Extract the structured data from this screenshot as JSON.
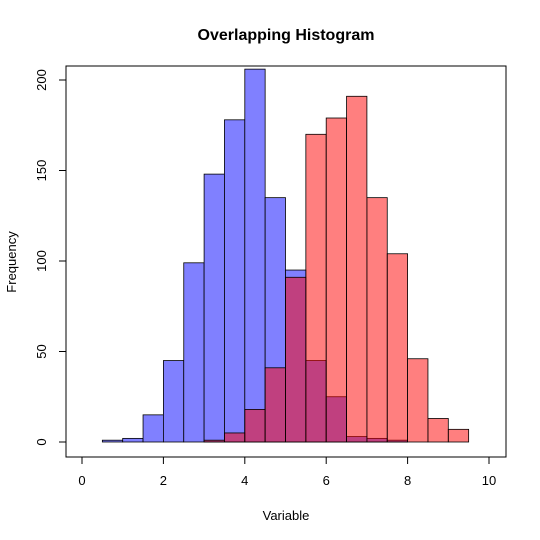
{
  "chart_data": {
    "type": "bar",
    "subtype": "overlapping-histogram",
    "title": "Overlapping Histogram",
    "xlabel": "Variable",
    "ylabel": "Frequency",
    "xlim": [
      0,
      10
    ],
    "ylim": [
      0,
      200
    ],
    "x_ticks": [
      "0",
      "2",
      "4",
      "6",
      "8",
      "10"
    ],
    "y_ticks": [
      "0",
      "50",
      "100",
      "150",
      "200"
    ],
    "bin_width": 0.5,
    "grid": false,
    "legend": "none",
    "series": [
      {
        "color": "#8080ff",
        "opacity": 1,
        "bins": [
          {
            "x0": 0.5,
            "count": 1
          },
          {
            "x0": 1.0,
            "count": 2
          },
          {
            "x0": 1.5,
            "count": 15
          },
          {
            "x0": 2.0,
            "count": 45
          },
          {
            "x0": 2.5,
            "count": 99
          },
          {
            "x0": 3.0,
            "count": 148
          },
          {
            "x0": 3.5,
            "count": 178
          },
          {
            "x0": 4.0,
            "count": 206
          },
          {
            "x0": 4.5,
            "count": 135
          },
          {
            "x0": 5.0,
            "count": 95
          },
          {
            "x0": 5.5,
            "count": 45
          },
          {
            "x0": 6.0,
            "count": 25
          },
          {
            "x0": 6.5,
            "count": 3
          },
          {
            "x0": 7.0,
            "count": 2
          },
          {
            "x0": 7.5,
            "count": 1
          }
        ]
      },
      {
        "color": "#ff0000",
        "opacity": 0.5,
        "bins": [
          {
            "x0": 3.0,
            "count": 1
          },
          {
            "x0": 3.5,
            "count": 5
          },
          {
            "x0": 4.0,
            "count": 18
          },
          {
            "x0": 4.5,
            "count": 41
          },
          {
            "x0": 5.0,
            "count": 91
          },
          {
            "x0": 5.5,
            "count": 170
          },
          {
            "x0": 6.0,
            "count": 179
          },
          {
            "x0": 6.5,
            "count": 191
          },
          {
            "x0": 7.0,
            "count": 135
          },
          {
            "x0": 7.5,
            "count": 104
          },
          {
            "x0": 8.0,
            "count": 46
          },
          {
            "x0": 8.5,
            "count": 13
          },
          {
            "x0": 9.0,
            "count": 7
          }
        ]
      }
    ]
  }
}
